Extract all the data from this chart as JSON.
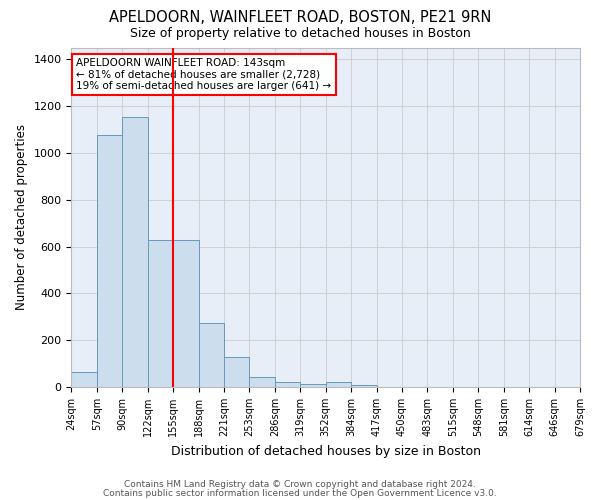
{
  "title": "APELDOORN, WAINFLEET ROAD, BOSTON, PE21 9RN",
  "subtitle": "Size of property relative to detached houses in Boston",
  "xlabel": "Distribution of detached houses by size in Boston",
  "ylabel": "Number of detached properties",
  "bar_color": "#ccdded",
  "bar_edge_color": "#6699bb",
  "bar_edge_width": 0.7,
  "background_color": "#e8eef8",
  "grid_color": "#cccccc",
  "red_line_bin_index": 4,
  "annotation_text": "APELDOORN WAINFLEET ROAD: 143sqm\n← 81% of detached houses are smaller (2,728)\n19% of semi-detached houses are larger (641) →",
  "bin_labels": [
    "24sqm",
    "57sqm",
    "90sqm",
    "122sqm",
    "155sqm",
    "188sqm",
    "221sqm",
    "253sqm",
    "286sqm",
    "319sqm",
    "352sqm",
    "384sqm",
    "417sqm",
    "450sqm",
    "483sqm",
    "515sqm",
    "548sqm",
    "581sqm",
    "614sqm",
    "646sqm",
    "679sqm"
  ],
  "n_bins": 21,
  "values": [
    65,
    1075,
    1155,
    630,
    630,
    275,
    130,
    45,
    20,
    15,
    20,
    10,
    0,
    0,
    0,
    0,
    0,
    0,
    0,
    0
  ],
  "ylim": [
    0,
    1450
  ],
  "yticks": [
    0,
    200,
    400,
    600,
    800,
    1000,
    1200,
    1400
  ],
  "footer_line1": "Contains HM Land Registry data © Crown copyright and database right 2024.",
  "footer_line2": "Contains public sector information licensed under the Open Government Licence v3.0."
}
